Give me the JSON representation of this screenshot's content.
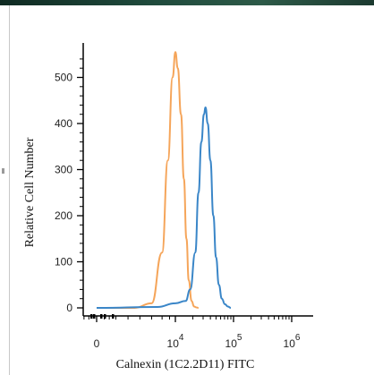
{
  "chart_data": {
    "type": "line",
    "xlabel": "Calnexin (1C2.2D11) FITC",
    "ylabel": "Relative Cell Number",
    "x_scale": "log",
    "ylim": [
      0,
      560
    ],
    "y_ticks": [
      0,
      100,
      200,
      300,
      400,
      500
    ],
    "x_tick_labels": [
      {
        "base": "0",
        "exp": ""
      },
      {
        "base": "10",
        "exp": "4"
      },
      {
        "base": "10",
        "exp": "5"
      },
      {
        "base": "10",
        "exp": "6"
      }
    ],
    "series": [
      {
        "color": "#f5a55a",
        "x": [
          0,
          2000,
          4000,
          6000,
          7500,
          9000,
          10000,
          11000,
          12500,
          14000,
          15500,
          17000,
          19000,
          21000,
          23000,
          25000
        ],
        "values": [
          0,
          0,
          10,
          120,
          320,
          500,
          555,
          520,
          420,
          280,
          150,
          60,
          15,
          3,
          1,
          0
        ]
      },
      {
        "color": "#3a86c8",
        "x": [
          0,
          5000,
          10000,
          15000,
          18000,
          22000,
          25000,
          28000,
          31000,
          33000,
          36000,
          40000,
          45000,
          50000,
          56000,
          63000,
          71000,
          80000,
          90000
        ],
        "values": [
          0,
          2,
          10,
          15,
          40,
          120,
          250,
          360,
          420,
          435,
          400,
          320,
          200,
          110,
          50,
          20,
          8,
          3,
          0
        ]
      }
    ]
  }
}
